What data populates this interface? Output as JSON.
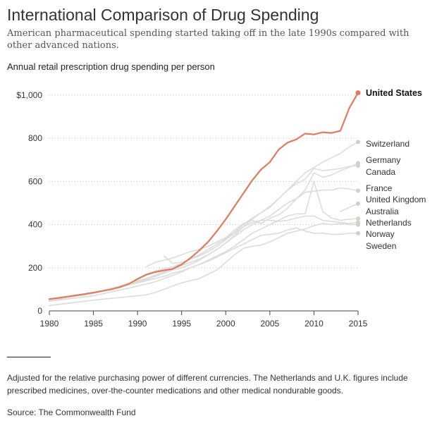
{
  "header": {
    "title": "International Comparison of Drug Spending",
    "subtitle": "American pharmaceutical spending started taking off in the late 1990s compared with other advanced nations."
  },
  "footer": {
    "note": "Adjusted for the relative purchasing power of different currencies. The Netherlands and U.K. figures include prescribed medicines, over-the-counter medications and other medical nondurable goods.",
    "source": "Source: The Commonwealth Fund"
  },
  "chart_data": {
    "type": "line",
    "title": "Annual retail prescription drug spending per person",
    "xlabel": "",
    "ylabel": "",
    "xlim": [
      1980,
      2015
    ],
    "ylim": [
      0,
      1000
    ],
    "x_ticks": [
      1980,
      1985,
      1990,
      1995,
      2000,
      2005,
      2010,
      2015
    ],
    "y_ticks": [
      {
        "value": 0,
        "label": "0"
      },
      {
        "value": 200,
        "label": "200"
      },
      {
        "value": 400,
        "label": "400"
      },
      {
        "value": 600,
        "label": "600"
      },
      {
        "value": 800,
        "label": "800"
      },
      {
        "value": 1000,
        "label": "$1,000"
      }
    ],
    "grid": true,
    "colors": {
      "highlight": "#e07a60",
      "others": "#dcdcd8",
      "end_dot": "#d0d0cc",
      "axis": "#444444",
      "grid": "#bbbbbb"
    },
    "series": [
      {
        "name": "United States",
        "highlight": true,
        "points": [
          [
            1980,
            55
          ],
          [
            1981,
            60
          ],
          [
            1982,
            66
          ],
          [
            1983,
            72
          ],
          [
            1984,
            78
          ],
          [
            1985,
            85
          ],
          [
            1986,
            92
          ],
          [
            1987,
            100
          ],
          [
            1988,
            110
          ],
          [
            1989,
            125
          ],
          [
            1990,
            148
          ],
          [
            1991,
            168
          ],
          [
            1992,
            180
          ],
          [
            1993,
            188
          ],
          [
            1994,
            195
          ],
          [
            1995,
            215
          ],
          [
            1996,
            245
          ],
          [
            1997,
            280
          ],
          [
            1998,
            320
          ],
          [
            1999,
            370
          ],
          [
            2000,
            425
          ],
          [
            2001,
            485
          ],
          [
            2002,
            545
          ],
          [
            2003,
            605
          ],
          [
            2004,
            655
          ],
          [
            2005,
            690
          ],
          [
            2006,
            748
          ],
          [
            2007,
            780
          ],
          [
            2008,
            795
          ],
          [
            2009,
            822
          ],
          [
            2010,
            818
          ],
          [
            2011,
            828
          ],
          [
            2012,
            825
          ],
          [
            2013,
            835
          ],
          [
            2014,
            940
          ],
          [
            2015,
            1011
          ]
        ]
      },
      {
        "name": "Switzerland",
        "points": [
          [
            1990,
            150
          ],
          [
            1991,
            170
          ],
          [
            1992,
            185
          ],
          [
            1993,
            195
          ],
          [
            1994,
            205
          ],
          [
            1995,
            220
          ],
          [
            1996,
            240
          ],
          [
            1997,
            260
          ],
          [
            1998,
            285
          ],
          [
            1999,
            310
          ],
          [
            2000,
            335
          ],
          [
            2001,
            365
          ],
          [
            2002,
            400
          ],
          [
            2003,
            430
          ],
          [
            2004,
            455
          ],
          [
            2005,
            480
          ],
          [
            2006,
            520
          ],
          [
            2007,
            560
          ],
          [
            2008,
            600
          ],
          [
            2009,
            640
          ],
          [
            2010,
            665
          ],
          [
            2011,
            690
          ],
          [
            2012,
            710
          ],
          [
            2013,
            730
          ],
          [
            2014,
            760
          ],
          [
            2015,
            783
          ]
        ]
      },
      {
        "name": "Germany",
        "points": [
          [
            1991,
            205
          ],
          [
            1992,
            225
          ],
          [
            1993,
            235
          ],
          [
            1994,
            245
          ],
          [
            1995,
            260
          ],
          [
            1996,
            275
          ],
          [
            1997,
            285
          ],
          [
            1998,
            300
          ],
          [
            1999,
            320
          ],
          [
            2000,
            340
          ],
          [
            2001,
            375
          ],
          [
            2002,
            405
          ],
          [
            2003,
            420
          ],
          [
            2004,
            405
          ],
          [
            2005,
            430
          ],
          [
            2006,
            445
          ],
          [
            2007,
            475
          ],
          [
            2008,
            520
          ],
          [
            2009,
            560
          ],
          [
            2010,
            640
          ],
          [
            2011,
            620
          ],
          [
            2012,
            630
          ],
          [
            2013,
            650
          ],
          [
            2014,
            665
          ],
          [
            2015,
            685
          ]
        ]
      },
      {
        "name": "Canada",
        "points": [
          [
            1980,
            45
          ],
          [
            1985,
            85
          ],
          [
            1990,
            135
          ],
          [
            1991,
            145
          ],
          [
            1992,
            160
          ],
          [
            1993,
            175
          ],
          [
            1994,
            190
          ],
          [
            1995,
            200
          ],
          [
            1996,
            215
          ],
          [
            1997,
            235
          ],
          [
            1998,
            260
          ],
          [
            1999,
            285
          ],
          [
            2000,
            315
          ],
          [
            2001,
            350
          ],
          [
            2002,
            390
          ],
          [
            2003,
            425
          ],
          [
            2004,
            455
          ],
          [
            2005,
            485
          ],
          [
            2006,
            520
          ],
          [
            2007,
            560
          ],
          [
            2008,
            590
          ],
          [
            2009,
            610
          ],
          [
            2010,
            660
          ],
          [
            2011,
            650
          ],
          [
            2012,
            655
          ],
          [
            2013,
            660
          ],
          [
            2014,
            670
          ],
          [
            2015,
            673
          ]
        ]
      },
      {
        "name": "France",
        "points": [
          [
            1980,
            50
          ],
          [
            1985,
            80
          ],
          [
            1990,
            140
          ],
          [
            1991,
            150
          ],
          [
            1992,
            165
          ],
          [
            1993,
            180
          ],
          [
            1994,
            195
          ],
          [
            1995,
            210
          ],
          [
            1996,
            225
          ],
          [
            1997,
            240
          ],
          [
            1998,
            260
          ],
          [
            1999,
            285
          ],
          [
            2000,
            315
          ],
          [
            2001,
            345
          ],
          [
            2002,
            375
          ],
          [
            2003,
            400
          ],
          [
            2004,
            420
          ],
          [
            2005,
            440
          ],
          [
            2006,
            470
          ],
          [
            2007,
            500
          ],
          [
            2008,
            520
          ],
          [
            2009,
            550
          ],
          [
            2010,
            555
          ],
          [
            2011,
            560
          ],
          [
            2012,
            560
          ],
          [
            2013,
            570
          ],
          [
            2014,
            565
          ],
          [
            2015,
            557
          ]
        ]
      },
      {
        "name": "United Kingdom",
        "points": [
          [
            2013,
            460
          ],
          [
            2014,
            480
          ],
          [
            2015,
            497
          ]
        ]
      },
      {
        "name": "Australia",
        "points": [
          [
            1980,
            45
          ],
          [
            1985,
            70
          ],
          [
            1990,
            115
          ],
          [
            1991,
            125
          ],
          [
            1992,
            135
          ],
          [
            1993,
            150
          ],
          [
            1994,
            165
          ],
          [
            1995,
            180
          ],
          [
            1996,
            200
          ],
          [
            1997,
            215
          ],
          [
            1998,
            235
          ],
          [
            1999,
            255
          ],
          [
            2000,
            275
          ],
          [
            2001,
            300
          ],
          [
            2002,
            330
          ],
          [
            2003,
            360
          ],
          [
            2004,
            380
          ],
          [
            2005,
            400
          ],
          [
            2006,
            420
          ],
          [
            2007,
            440
          ],
          [
            2008,
            450
          ],
          [
            2009,
            450
          ],
          [
            2010,
            600
          ],
          [
            2011,
            460
          ],
          [
            2012,
            430
          ],
          [
            2013,
            420
          ],
          [
            2014,
            425
          ],
          [
            2015,
            428
          ]
        ]
      },
      {
        "name": "Netherlands",
        "points": [
          [
            1993,
            255
          ],
          [
            1994,
            220
          ],
          [
            1995,
            225
          ],
          [
            1996,
            240
          ],
          [
            1997,
            255
          ],
          [
            1998,
            275
          ],
          [
            1999,
            300
          ],
          [
            2000,
            330
          ],
          [
            2001,
            360
          ],
          [
            2002,
            390
          ],
          [
            2003,
            410
          ],
          [
            2004,
            420
          ],
          [
            2005,
            420
          ],
          [
            2006,
            415
          ],
          [
            2007,
            420
          ],
          [
            2008,
            430
          ],
          [
            2009,
            440
          ],
          [
            2010,
            440
          ],
          [
            2011,
            420
          ],
          [
            2012,
            415
          ],
          [
            2013,
            410
          ],
          [
            2014,
            405
          ],
          [
            2015,
            410
          ]
        ]
      },
      {
        "name": "Norway",
        "points": [
          [
            1980,
            50
          ],
          [
            1985,
            85
          ],
          [
            1990,
            130
          ],
          [
            1991,
            140
          ],
          [
            1992,
            150
          ],
          [
            1993,
            160
          ],
          [
            1994,
            175
          ],
          [
            1995,
            185
          ],
          [
            1996,
            200
          ],
          [
            1997,
            215
          ],
          [
            1998,
            230
          ],
          [
            1999,
            250
          ],
          [
            2000,
            270
          ],
          [
            2001,
            290
          ],
          [
            2002,
            310
          ],
          [
            2003,
            330
          ],
          [
            2004,
            350
          ],
          [
            2005,
            355
          ],
          [
            2006,
            360
          ],
          [
            2007,
            375
          ],
          [
            2008,
            385
          ],
          [
            2009,
            370
          ],
          [
            2010,
            360
          ],
          [
            2011,
            360
          ],
          [
            2012,
            355
          ],
          [
            2013,
            355
          ],
          [
            2014,
            360
          ],
          [
            2015,
            360
          ]
        ]
      },
      {
        "name": "Sweden",
        "points": [
          [
            1980,
            25
          ],
          [
            1985,
            50
          ],
          [
            1990,
            70
          ],
          [
            1991,
            75
          ],
          [
            1992,
            85
          ],
          [
            1993,
            100
          ],
          [
            1994,
            115
          ],
          [
            1995,
            130
          ],
          [
            1996,
            140
          ],
          [
            1997,
            150
          ],
          [
            1998,
            170
          ],
          [
            1999,
            190
          ],
          [
            2000,
            225
          ],
          [
            2001,
            260
          ],
          [
            2002,
            290
          ],
          [
            2003,
            300
          ],
          [
            2004,
            305
          ],
          [
            2005,
            320
          ],
          [
            2006,
            340
          ],
          [
            2007,
            360
          ],
          [
            2008,
            370
          ],
          [
            2009,
            380
          ],
          [
            2010,
            395
          ],
          [
            2011,
            405
          ],
          [
            2012,
            400
          ],
          [
            2013,
            405
          ],
          [
            2014,
            400
          ],
          [
            2015,
            400
          ]
        ]
      }
    ]
  }
}
